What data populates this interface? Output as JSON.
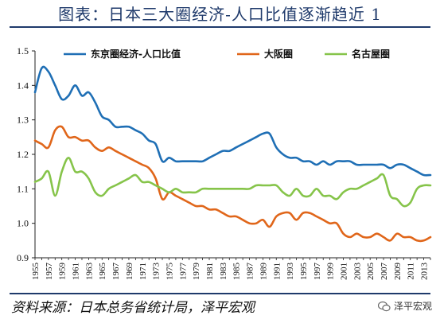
{
  "header": {
    "title": "图表：日本三大圈经济-人口比值逐渐趋近 1"
  },
  "footer": {
    "source": "资料来源：日本总务省统计局，泽平宏观",
    "watermark": "泽平宏观"
  },
  "colors": {
    "tokyo": "#1f6fb5",
    "osaka": "#e0661a",
    "nagoya": "#86c44a",
    "title": "#1f3a6b",
    "axis": "#222222"
  },
  "chart_data": {
    "type": "line",
    "title": "图表：日本三大圈经济-人口比值逐渐趋近 1",
    "xlabel": "",
    "ylabel": "",
    "ylim": [
      0.9,
      1.5
    ],
    "yticks": [
      "0.9",
      "1.0",
      "1.1",
      "1.2",
      "1.3",
      "1.4",
      "1.5"
    ],
    "xticks": [
      "1955",
      "1957",
      "1959",
      "1961",
      "1963",
      "1965",
      "1967",
      "1969",
      "1971",
      "1973",
      "1975",
      "1977",
      "1979",
      "1981",
      "1983",
      "1985",
      "1987",
      "1989",
      "1991",
      "1993",
      "1995",
      "1997",
      "1999",
      "2001",
      "2003",
      "2005",
      "2007",
      "2009",
      "2011",
      "2013"
    ],
    "legend_position": "top",
    "grid": false,
    "x": [
      1955,
      1956,
      1957,
      1958,
      1959,
      1960,
      1961,
      1962,
      1963,
      1964,
      1965,
      1966,
      1967,
      1968,
      1969,
      1970,
      1971,
      1972,
      1973,
      1974,
      1975,
      1976,
      1977,
      1978,
      1979,
      1980,
      1981,
      1982,
      1983,
      1984,
      1985,
      1986,
      1987,
      1988,
      1989,
      1990,
      1991,
      1992,
      1993,
      1994,
      1995,
      1996,
      1997,
      1998,
      1999,
      2000,
      2001,
      2002,
      2003,
      2004,
      2005,
      2006,
      2007,
      2008,
      2009,
      2010,
      2011,
      2012,
      2013,
      2014
    ],
    "series": [
      {
        "name": "东京圈经济-人口比值",
        "color_key": "tokyo",
        "values": [
          1.38,
          1.45,
          1.44,
          1.4,
          1.36,
          1.37,
          1.4,
          1.37,
          1.38,
          1.35,
          1.31,
          1.3,
          1.28,
          1.28,
          1.28,
          1.27,
          1.26,
          1.24,
          1.23,
          1.18,
          1.19,
          1.18,
          1.18,
          1.18,
          1.18,
          1.18,
          1.19,
          1.2,
          1.21,
          1.21,
          1.22,
          1.23,
          1.24,
          1.25,
          1.26,
          1.26,
          1.22,
          1.2,
          1.19,
          1.19,
          1.18,
          1.18,
          1.17,
          1.18,
          1.17,
          1.18,
          1.18,
          1.18,
          1.17,
          1.17,
          1.17,
          1.17,
          1.17,
          1.16,
          1.17,
          1.17,
          1.16,
          1.15,
          1.14,
          1.14
        ]
      },
      {
        "name": "大阪圈",
        "color_key": "osaka",
        "values": [
          1.24,
          1.23,
          1.22,
          1.27,
          1.28,
          1.25,
          1.25,
          1.24,
          1.24,
          1.22,
          1.21,
          1.22,
          1.21,
          1.2,
          1.19,
          1.18,
          1.17,
          1.16,
          1.13,
          1.07,
          1.09,
          1.08,
          1.07,
          1.06,
          1.05,
          1.05,
          1.04,
          1.04,
          1.03,
          1.02,
          1.02,
          1.01,
          1.0,
          1.0,
          1.01,
          0.99,
          1.02,
          1.03,
          1.03,
          1.01,
          1.03,
          1.03,
          1.02,
          1.01,
          1.0,
          1.0,
          0.97,
          0.96,
          0.97,
          0.96,
          0.96,
          0.97,
          0.96,
          0.95,
          0.97,
          0.96,
          0.96,
          0.95,
          0.95,
          0.96
        ]
      },
      {
        "name": "名古屋圈",
        "color_key": "nagoya",
        "values": [
          1.12,
          1.13,
          1.15,
          1.08,
          1.15,
          1.19,
          1.15,
          1.15,
          1.13,
          1.09,
          1.08,
          1.1,
          1.11,
          1.12,
          1.13,
          1.14,
          1.12,
          1.12,
          1.11,
          1.1,
          1.09,
          1.1,
          1.09,
          1.09,
          1.09,
          1.1,
          1.1,
          1.1,
          1.1,
          1.1,
          1.1,
          1.1,
          1.1,
          1.11,
          1.11,
          1.11,
          1.11,
          1.09,
          1.08,
          1.1,
          1.08,
          1.08,
          1.1,
          1.08,
          1.08,
          1.07,
          1.09,
          1.1,
          1.1,
          1.11,
          1.12,
          1.13,
          1.14,
          1.08,
          1.07,
          1.05,
          1.06,
          1.1,
          1.11,
          1.11
        ]
      }
    ]
  }
}
